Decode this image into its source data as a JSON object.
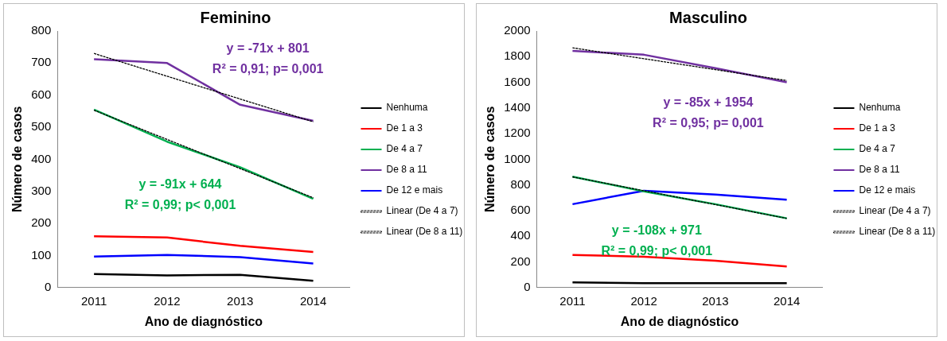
{
  "chart_data": [
    {
      "type": "line",
      "title": "Feminino",
      "xlabel": "Ano de diagnóstico",
      "ylabel": "Número de casos",
      "categories": [
        "2011",
        "2012",
        "2013",
        "2014"
      ],
      "ylim": [
        0,
        800
      ],
      "yticks": [
        0,
        100,
        200,
        300,
        400,
        500,
        600,
        700,
        800
      ],
      "grid": false,
      "legend": "right",
      "marker": "none",
      "series": [
        {
          "name": "Nenhuma",
          "color": "#000000",
          "values": [
            42,
            38,
            40,
            21
          ]
        },
        {
          "name": "De 1 a 3",
          "color": "#ff0000",
          "values": [
            160,
            156,
            130,
            111
          ]
        },
        {
          "name": "De 4 a 7",
          "color": "#00b050",
          "values": [
            555,
            455,
            375,
            277
          ]
        },
        {
          "name": "De 8 a 11",
          "color": "#7030a0",
          "values": [
            712,
            700,
            570,
            520
          ]
        },
        {
          "name": "De 12 e mais",
          "color": "#0000ff",
          "values": [
            97,
            102,
            95,
            75
          ]
        },
        {
          "name": "Linear (De 4 a 7)",
          "color": "#000000",
          "line_style": "dashed",
          "values": [
            553,
            462,
            371,
            280
          ]
        },
        {
          "name": "Linear (De 8 a 11)",
          "color": "#000000",
          "line_style": "dashed",
          "values": [
            730,
            659,
            588,
            517
          ]
        }
      ],
      "annotations": [
        "y = -71x + 801",
        "R² = 0,91; p= 0,001",
        "y = -91x + 644",
        "R² = 0,99; p< 0,001"
      ]
    },
    {
      "type": "line",
      "title": "Masculino",
      "xlabel": "Ano de diagnóstico",
      "ylabel": "Número de casos",
      "categories": [
        "2011",
        "2012",
        "2013",
        "2014"
      ],
      "ylim": [
        0,
        2000
      ],
      "yticks": [
        0,
        200,
        400,
        600,
        800,
        1000,
        1200,
        1400,
        1600,
        1800,
        2000
      ],
      "grid": false,
      "legend": "right",
      "marker": "none",
      "series": [
        {
          "name": "Nenhuma",
          "color": "#000000",
          "values": [
            40,
            35,
            35,
            35
          ]
        },
        {
          "name": "De 1 a 3",
          "color": "#ff0000",
          "values": [
            255,
            240,
            210,
            165
          ]
        },
        {
          "name": "De 4 a 7",
          "color": "#00b050",
          "values": [
            865,
            750,
            650,
            540
          ]
        },
        {
          "name": "De 8 a 11",
          "color": "#7030a0",
          "values": [
            1845,
            1815,
            1710,
            1600
          ]
        },
        {
          "name": "De 12 e mais",
          "color": "#0000ff",
          "values": [
            650,
            755,
            725,
            685
          ]
        },
        {
          "name": "Linear (De 4 a 7)",
          "color": "#000000",
          "line_style": "dashed",
          "values": [
            863,
            755,
            647,
            539
          ]
        },
        {
          "name": "Linear (De 8 a 11)",
          "color": "#000000",
          "line_style": "dashed",
          "values": [
            1869,
            1784,
            1699,
            1614
          ]
        }
      ],
      "annotations": [
        "y = -85x + 1954",
        "R² = 0,95; p= 0,001",
        "y = -108x + 971",
        "R² = 0,99; p< 0,001"
      ]
    }
  ]
}
